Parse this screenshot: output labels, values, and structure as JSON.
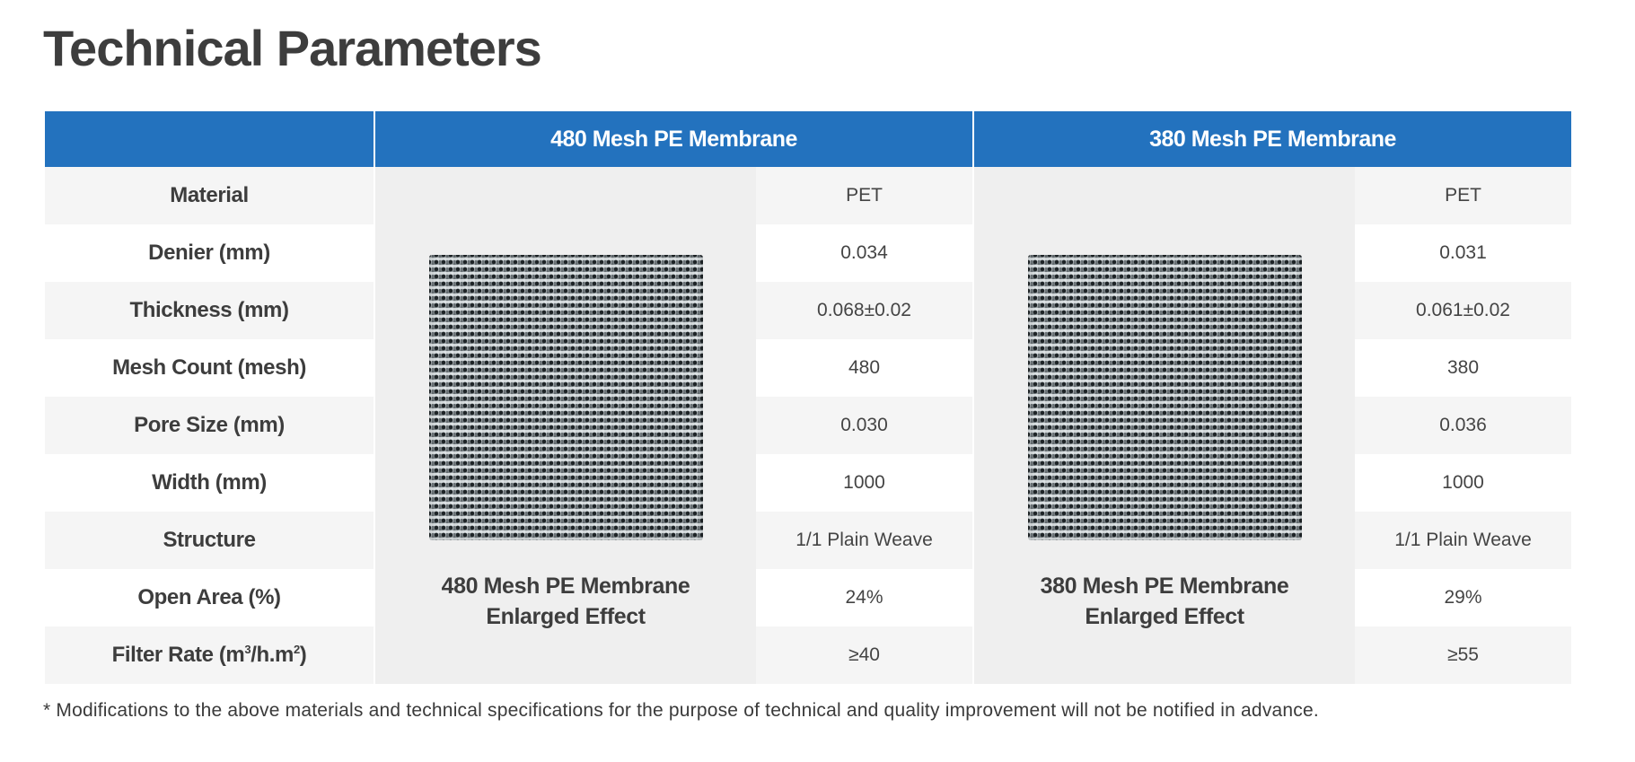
{
  "title": "Technical Parameters",
  "columns": {
    "blank": "",
    "product_a": "480 Mesh PE Membrane",
    "product_b": "380 Mesh PE Membrane"
  },
  "rows": [
    {
      "label": "Material",
      "a": "PET",
      "b": "PET"
    },
    {
      "label": "Denier (mm)",
      "a": "0.034",
      "b": "0.031"
    },
    {
      "label": "Thickness (mm)",
      "a": "0.068±0.02",
      "b": "0.061±0.02"
    },
    {
      "label": "Mesh Count (mesh)",
      "a": "480",
      "b": "380"
    },
    {
      "label": "Pore Size (mm)",
      "a": "0.030",
      "b": "0.036"
    },
    {
      "label": "Width (mm)",
      "a": "1000",
      "b": "1000"
    },
    {
      "label": "Structure",
      "a": "1/1 Plain Weave",
      "b": "1/1 Plain Weave"
    },
    {
      "label": "Open Area (%)",
      "a": "24%",
      "b": "29%"
    },
    {
      "label_pre": "Filter Rate (m",
      "label_sup1": "3",
      "label_mid": "/h.m",
      "label_sup2": "2",
      "label_post": ")",
      "a": "≥40",
      "b": "≥55"
    }
  ],
  "image_captions": {
    "a_line1": "480 Mesh PE Membrane",
    "a_line2": "Enlarged Effect",
    "b_line1": "380 Mesh PE Membrane",
    "b_line2": "Enlarged Effect"
  },
  "footnote": "* Modifications to the above materials and technical specifications for the purpose of technical and quality improvement will not be notified in advance.",
  "colors": {
    "header_blue": "#2372be",
    "row_gray": "#f5f5f5",
    "image_bg": "#efefef",
    "text": "#3d3d3d"
  }
}
